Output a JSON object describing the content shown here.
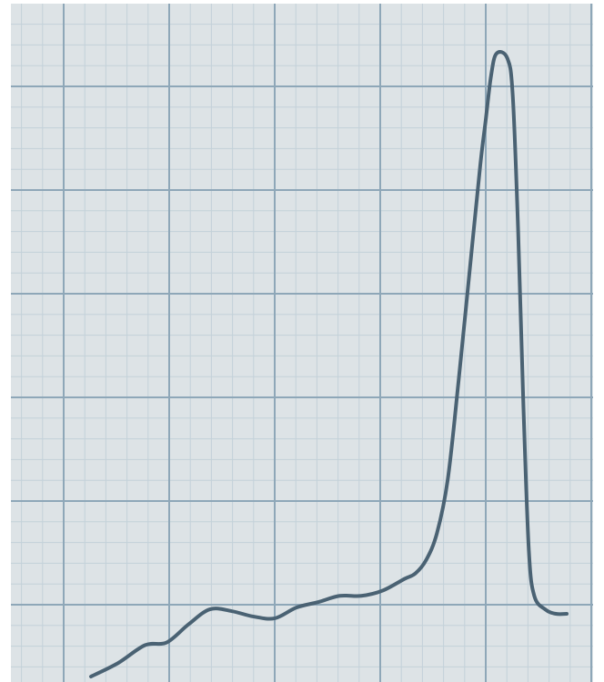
{
  "chart_data": {
    "type": "line",
    "title": "",
    "xlabel": "",
    "ylabel": "",
    "grid": true,
    "xlim": [
      0,
      53
    ],
    "ylim": [
      0,
      70
    ],
    "series": [
      {
        "values": [
          [
            0,
            0.0
          ],
          [
            2.5,
            1.5
          ],
          [
            5,
            3.5
          ],
          [
            7,
            3.8
          ],
          [
            9,
            5.8
          ],
          [
            11,
            7.5
          ],
          [
            13,
            7.3
          ],
          [
            15,
            6.7
          ],
          [
            17,
            6.5
          ],
          [
            19,
            7.7
          ],
          [
            21,
            8.3
          ],
          [
            23,
            9.0
          ],
          [
            25,
            9.0
          ],
          [
            27,
            9.6
          ],
          [
            29,
            10.9
          ],
          [
            30,
            11.5
          ],
          [
            31,
            13.0
          ],
          [
            32,
            16.0
          ],
          [
            33,
            22.0
          ],
          [
            34,
            33.0
          ],
          [
            35,
            45.0
          ],
          [
            36,
            57.0
          ],
          [
            36.5,
            62.0
          ],
          [
            37,
            67.0
          ],
          [
            37.5,
            69.5
          ],
          [
            38.5,
            69.0
          ],
          [
            39,
            65.0
          ],
          [
            39.5,
            50.0
          ],
          [
            40,
            30.0
          ],
          [
            40.5,
            14.0
          ],
          [
            41,
            9.0
          ],
          [
            42,
            7.5
          ],
          [
            43,
            7.0
          ],
          [
            44,
            7.0
          ]
        ]
      }
    ],
    "colors": {
      "line": "#4a6273",
      "paper": "#dde3e6",
      "major_grid": "#8ea7b8",
      "minor_grid": "#c3d1d9"
    }
  }
}
